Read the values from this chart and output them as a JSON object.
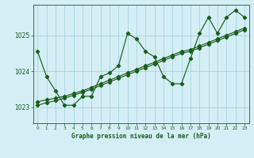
{
  "title": "Graphe pression niveau de la mer (hPa)",
  "bg_color": "#d4eef5",
  "grid_color": "#a8d4de",
  "line_color": "#1a5c1a",
  "xlim": [
    -0.5,
    23.5
  ],
  "ylim": [
    1022.55,
    1025.85
  ],
  "yticks": [
    1023,
    1024,
    1025
  ],
  "xticks": [
    0,
    1,
    2,
    3,
    4,
    5,
    6,
    7,
    8,
    9,
    10,
    11,
    12,
    13,
    14,
    15,
    16,
    17,
    18,
    19,
    20,
    21,
    22,
    23
  ],
  "series1_x": [
    0,
    1,
    2,
    3,
    4,
    5,
    6,
    7,
    8,
    9,
    10,
    11,
    12,
    13,
    14,
    15,
    16,
    17,
    18,
    19,
    20,
    21,
    22,
    23
  ],
  "series1_y": [
    1024.55,
    1023.85,
    1023.45,
    1023.05,
    1023.05,
    1023.3,
    1023.3,
    1023.85,
    1023.95,
    1024.15,
    1025.05,
    1024.9,
    1024.55,
    1024.4,
    1023.85,
    1023.65,
    1023.65,
    1024.35,
    1025.05,
    1025.5,
    1025.05,
    1025.5,
    1025.7,
    1025.5
  ],
  "series2_x": [
    0,
    1,
    2,
    3,
    4,
    5,
    6,
    7,
    8,
    9,
    10,
    11,
    12,
    13,
    14,
    15,
    16,
    17,
    18,
    19,
    20,
    21,
    22,
    23
  ],
  "series2_y": [
    1023.15,
    1023.2,
    1023.25,
    1023.3,
    1023.38,
    1023.45,
    1023.55,
    1023.65,
    1023.75,
    1023.85,
    1023.95,
    1024.05,
    1024.15,
    1024.25,
    1024.35,
    1024.45,
    1024.55,
    1024.6,
    1024.7,
    1024.8,
    1024.9,
    1025.0,
    1025.1,
    1025.2
  ],
  "series3_x": [
    0,
    1,
    2,
    3,
    4,
    5,
    6,
    7,
    8,
    9,
    10,
    11,
    12,
    13,
    14,
    15,
    16,
    17,
    18,
    19,
    20,
    21,
    22,
    23
  ],
  "series3_y": [
    1023.05,
    1023.12,
    1023.18,
    1023.25,
    1023.33,
    1023.41,
    1023.5,
    1023.6,
    1023.7,
    1023.8,
    1023.9,
    1024.0,
    1024.1,
    1024.2,
    1024.3,
    1024.4,
    1024.5,
    1024.55,
    1024.65,
    1024.75,
    1024.85,
    1024.95,
    1025.05,
    1025.15
  ]
}
